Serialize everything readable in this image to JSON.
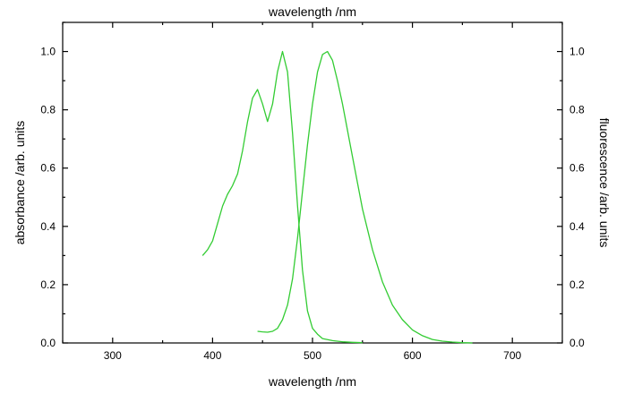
{
  "chart_data": {
    "type": "line",
    "top_title": "wavelength /nm",
    "xlabel": "wavelength /nm",
    "ylabel_left": "absorbance /arb. units",
    "ylabel_right": "fluorescence /arb. units",
    "xlim": [
      250,
      750
    ],
    "ylim": [
      0,
      1.1
    ],
    "x_ticks": [
      "300",
      "400",
      "500",
      "600",
      "700"
    ],
    "y_ticks": [
      "0.0",
      "0.2",
      "0.4",
      "0.6",
      "0.8",
      "1.0"
    ],
    "grid": false,
    "line_color": "#33cc33",
    "series": [
      {
        "x": [
          390,
          395,
          400,
          405,
          410,
          415,
          420,
          425,
          430,
          435,
          440,
          445,
          450,
          455,
          460,
          465,
          470,
          475,
          480,
          485,
          490,
          495,
          500,
          505,
          510,
          520,
          530,
          540,
          550
        ],
        "y": [
          0.3,
          0.32,
          0.35,
          0.41,
          0.47,
          0.51,
          0.54,
          0.58,
          0.66,
          0.76,
          0.84,
          0.87,
          0.82,
          0.76,
          0.82,
          0.93,
          1.0,
          0.93,
          0.72,
          0.47,
          0.25,
          0.11,
          0.05,
          0.03,
          0.015,
          0.008,
          0.004,
          0.002,
          0.001
        ]
      },
      {
        "x": [
          445,
          450,
          455,
          460,
          465,
          470,
          475,
          480,
          485,
          490,
          495,
          500,
          505,
          510,
          515,
          520,
          525,
          530,
          540,
          550,
          560,
          570,
          580,
          590,
          600,
          610,
          620,
          630,
          640,
          650,
          660
        ],
        "y": [
          0.04,
          0.038,
          0.037,
          0.04,
          0.05,
          0.08,
          0.13,
          0.22,
          0.36,
          0.52,
          0.68,
          0.82,
          0.93,
          0.99,
          1.0,
          0.97,
          0.9,
          0.82,
          0.64,
          0.46,
          0.32,
          0.21,
          0.13,
          0.08,
          0.045,
          0.025,
          0.012,
          0.006,
          0.003,
          0.001,
          0.0
        ]
      }
    ]
  }
}
